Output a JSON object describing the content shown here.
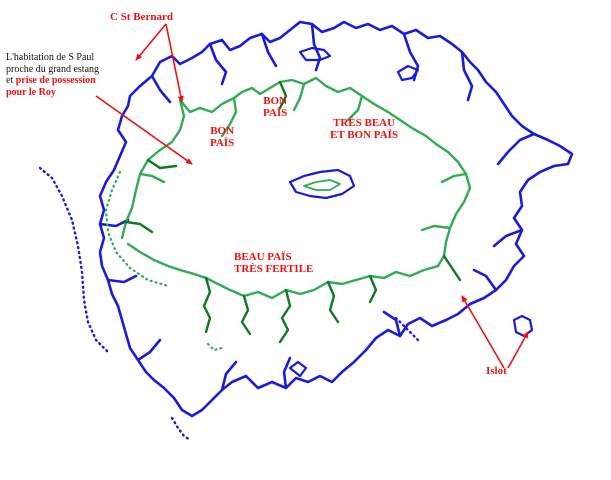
{
  "map": {
    "labels": {
      "cape": "C  St Bernard",
      "note_line1": "L'habitation de S Paul",
      "note_line2": "proche du grand estang",
      "note_line3_prefix": "et ",
      "note_line3_emph": "prise de possession",
      "note_line4_emph": "pour le Roy",
      "bon_pais_west_1": "BON",
      "bon_pais_west_2": "PAÏS",
      "bon_pais_north_1": "BON",
      "bon_pais_north_2": "PAÏS",
      "tres_beau_1": "TRÈS BEAU",
      "tres_beau_2": "ET BON PAÏS",
      "beau_pais_1": "BEAU PAÏS",
      "beau_pais_2": "TRÈS FERTILE",
      "islot": "Islot"
    },
    "colors": {
      "coast": "#1a1adb",
      "river_light": "#33aa55",
      "river_dark": "#117722",
      "annotation": "#ee1111"
    }
  }
}
